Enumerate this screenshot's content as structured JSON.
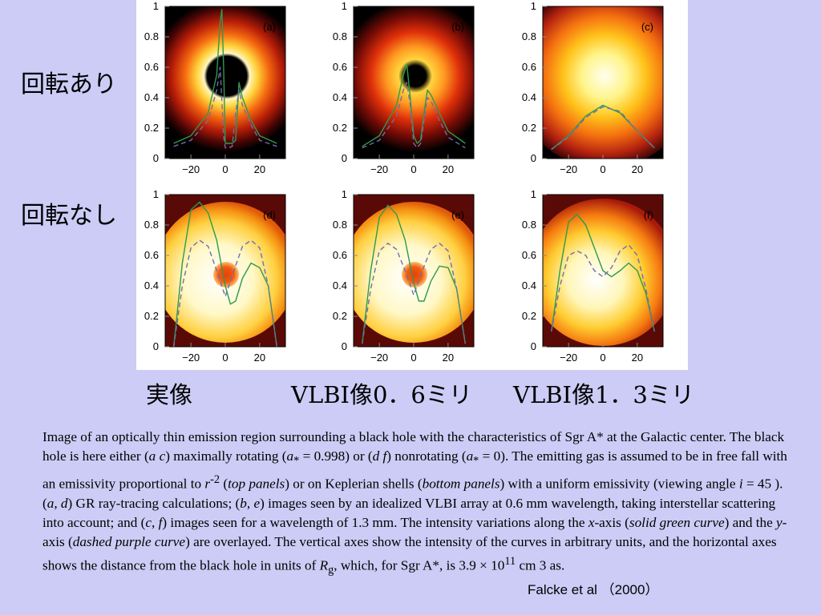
{
  "row_labels": {
    "rotating": "回転あり",
    "nonrotating": "回転なし"
  },
  "column_labels": {
    "real": "実像",
    "vlbi_06": "VLBI像0．6ミリ",
    "vlbi_13": "VLBI像1．3ミリ"
  },
  "chart_data": [
    {
      "type": "line",
      "panel": "(a)",
      "xlim": [
        -35,
        35
      ],
      "ylim": [
        0,
        1
      ],
      "xticks": [
        -20,
        0,
        20
      ],
      "yticks": [
        0,
        0.2,
        0.4,
        0.6,
        0.8,
        1
      ],
      "series": [
        {
          "style": "solid green",
          "x": [
            -30,
            -20,
            -10,
            -5,
            -3,
            -2,
            -1,
            0,
            2,
            4,
            6,
            8,
            10,
            15,
            20,
            30
          ],
          "values": [
            0.1,
            0.15,
            0.3,
            0.55,
            0.9,
            0.98,
            0.6,
            0.1,
            0.1,
            0.1,
            0.12,
            0.5,
            0.4,
            0.25,
            0.15,
            0.1
          ]
        },
        {
          "style": "dashed purple",
          "x": [
            -30,
            -20,
            -10,
            -5,
            -3,
            -1,
            0,
            2,
            4,
            6,
            8,
            10,
            15,
            20,
            30
          ],
          "values": [
            0.08,
            0.12,
            0.25,
            0.45,
            0.6,
            0.15,
            0.07,
            0.07,
            0.08,
            0.3,
            0.45,
            0.35,
            0.22,
            0.12,
            0.08
          ]
        }
      ]
    },
    {
      "type": "line",
      "panel": "(b)",
      "xlim": [
        -35,
        35
      ],
      "ylim": [
        0,
        1
      ],
      "xticks": [
        -20,
        0,
        20
      ],
      "yticks": [
        0,
        0.2,
        0.4,
        0.6,
        0.8,
        1
      ],
      "series": [
        {
          "style": "solid green",
          "x": [
            -30,
            -20,
            -10,
            -6,
            -4,
            -2,
            0,
            2,
            4,
            6,
            8,
            10,
            15,
            20,
            30
          ],
          "values": [
            0.08,
            0.15,
            0.35,
            0.55,
            0.62,
            0.4,
            0.15,
            0.1,
            0.12,
            0.3,
            0.45,
            0.42,
            0.3,
            0.18,
            0.1
          ]
        },
        {
          "style": "dashed purple",
          "x": [
            -30,
            -20,
            -10,
            -6,
            -4,
            -2,
            0,
            2,
            4,
            6,
            8,
            10,
            15,
            20,
            30
          ],
          "values": [
            0.07,
            0.12,
            0.28,
            0.45,
            0.5,
            0.35,
            0.1,
            0.07,
            0.1,
            0.25,
            0.4,
            0.38,
            0.25,
            0.14,
            0.07
          ]
        }
      ]
    },
    {
      "type": "line",
      "panel": "(c)",
      "xlim": [
        -35,
        35
      ],
      "ylim": [
        0,
        1
      ],
      "xticks": [
        -20,
        0,
        20
      ],
      "yticks": [
        0,
        0.2,
        0.4,
        0.6,
        0.8,
        1
      ],
      "series": [
        {
          "style": "solid green",
          "x": [
            -30,
            -20,
            -10,
            0,
            10,
            20,
            30
          ],
          "values": [
            0.06,
            0.15,
            0.28,
            0.35,
            0.3,
            0.18,
            0.07
          ]
        },
        {
          "style": "dashed purple",
          "x": [
            -30,
            -20,
            -10,
            0,
            10,
            20,
            30
          ],
          "values": [
            0.06,
            0.14,
            0.27,
            0.34,
            0.31,
            0.18,
            0.07
          ]
        }
      ]
    },
    {
      "type": "line",
      "panel": "(d)",
      "xlim": [
        -35,
        35
      ],
      "ylim": [
        0,
        1
      ],
      "xticks": [
        -20,
        0,
        20
      ],
      "yticks": [
        0,
        0.2,
        0.4,
        0.6,
        0.8,
        1
      ],
      "series": [
        {
          "style": "solid green",
          "x": [
            -30,
            -25,
            -20,
            -15,
            -10,
            -5,
            0,
            3,
            6,
            10,
            15,
            20,
            25,
            30
          ],
          "values": [
            0.0,
            0.55,
            0.9,
            0.95,
            0.88,
            0.7,
            0.4,
            0.28,
            0.3,
            0.45,
            0.55,
            0.52,
            0.4,
            0.0
          ]
        },
        {
          "style": "dashed purple",
          "x": [
            -30,
            -25,
            -20,
            -15,
            -10,
            -5,
            0,
            5,
            10,
            15,
            20,
            25,
            30
          ],
          "values": [
            0.0,
            0.4,
            0.65,
            0.7,
            0.66,
            0.5,
            0.33,
            0.5,
            0.66,
            0.7,
            0.65,
            0.4,
            0.0
          ]
        }
      ]
    },
    {
      "type": "line",
      "panel": "(e)",
      "xlim": [
        -35,
        35
      ],
      "ylim": [
        0,
        1
      ],
      "xticks": [
        -20,
        0,
        20
      ],
      "yticks": [
        0,
        0.2,
        0.4,
        0.6,
        0.8,
        1
      ],
      "series": [
        {
          "style": "solid green",
          "x": [
            -30,
            -25,
            -20,
            -15,
            -10,
            -5,
            0,
            3,
            6,
            10,
            15,
            20,
            25,
            30
          ],
          "values": [
            0.02,
            0.5,
            0.85,
            0.93,
            0.87,
            0.7,
            0.42,
            0.3,
            0.3,
            0.43,
            0.53,
            0.52,
            0.38,
            0.02
          ]
        },
        {
          "style": "dashed purple",
          "x": [
            -30,
            -25,
            -20,
            -15,
            -10,
            -5,
            0,
            5,
            10,
            15,
            20,
            25,
            30
          ],
          "values": [
            0.02,
            0.38,
            0.63,
            0.68,
            0.64,
            0.5,
            0.34,
            0.5,
            0.64,
            0.68,
            0.63,
            0.38,
            0.02
          ]
        }
      ]
    },
    {
      "type": "line",
      "panel": "(f)",
      "xlim": [
        -35,
        35
      ],
      "ylim": [
        0,
        1
      ],
      "xticks": [
        -20,
        0,
        20
      ],
      "yticks": [
        0,
        0.2,
        0.4,
        0.6,
        0.8,
        1
      ],
      "series": [
        {
          "style": "solid green",
          "x": [
            -30,
            -25,
            -20,
            -15,
            -10,
            -5,
            0,
            5,
            10,
            15,
            20,
            25,
            30
          ],
          "values": [
            0.1,
            0.5,
            0.82,
            0.87,
            0.8,
            0.65,
            0.5,
            0.46,
            0.5,
            0.55,
            0.5,
            0.35,
            0.1
          ]
        },
        {
          "style": "dashed purple",
          "x": [
            -30,
            -25,
            -20,
            -15,
            -10,
            -5,
            0,
            5,
            10,
            15,
            20,
            25,
            30
          ],
          "values": [
            0.1,
            0.4,
            0.6,
            0.63,
            0.6,
            0.5,
            0.46,
            0.52,
            0.63,
            0.67,
            0.6,
            0.38,
            0.1
          ]
        }
      ]
    }
  ],
  "caption": {
    "p1": "Image of an optically thin emission region surrounding a black hole with the characteristics of Sgr A* at the Galactic center. The black hole is here either (",
    "p1_it1": "a c",
    "p1_b": ") maximally rotating (",
    "p1_it2": "a",
    "p1_sub": "*",
    "p1_c": " = 0.998) or (",
    "p1_it3": "d f",
    "p1_d": ") nonrotating (",
    "p1_it4": "a",
    "p1_sub2": "*",
    "p1_e": " = 0). The emitting gas is assumed to be in free fall with an emissivity proportional to ",
    "p1_it5": "r",
    "p1_sup": "-2",
    "p1_f": " (",
    "p1_it6": "top panels",
    "p1_g": ") or on Keplerian shells (",
    "p1_it7": "bottom panels",
    "p1_h": ") with a uniform emissivity (viewing angle ",
    "p1_it8": "i",
    "p1_i": " = 45 ). (",
    "p1_it9": "a",
    "p1_j": ", ",
    "p1_it10": "d",
    "p1_k": ") GR ray-tracing calculations; (",
    "p1_it11": "b",
    "p1_l": ", ",
    "p1_it12": "e",
    "p1_m": ") images seen by an idealized VLBI array at 0.6 mm wavelength, taking interstellar scattering into account; and (",
    "p1_it13": "c",
    "p1_n": ", ",
    "p1_it14": "f",
    "p1_o": ") images seen for a wavelength of 1.3 mm. The intensity variations along the ",
    "p1_it15": "x",
    "p1_p": "-axis (",
    "p1_it16": "solid green curve",
    "p1_q": ") and the ",
    "p1_it17": "y",
    "p1_r": "-axis (",
    "p1_it18": "dashed purple curve",
    "p1_s": ") are overlayed. The vertical axes show the intensity of the curves in arbitrary units, and the horizontal axes shows the distance from the black hole in units of ",
    "p1_it19": "R",
    "p1_sub3": "g",
    "p1_t": ", which, for Sgr A*, is 3.9  ×  10",
    "p1_sup2": "11",
    "p1_u": " cm   3  as."
  },
  "citation": "Falcke   et   al （2000）",
  "colors": {
    "background": "#ccccf6",
    "green": "#2e9a4e",
    "purple": "#6e6eb0"
  }
}
